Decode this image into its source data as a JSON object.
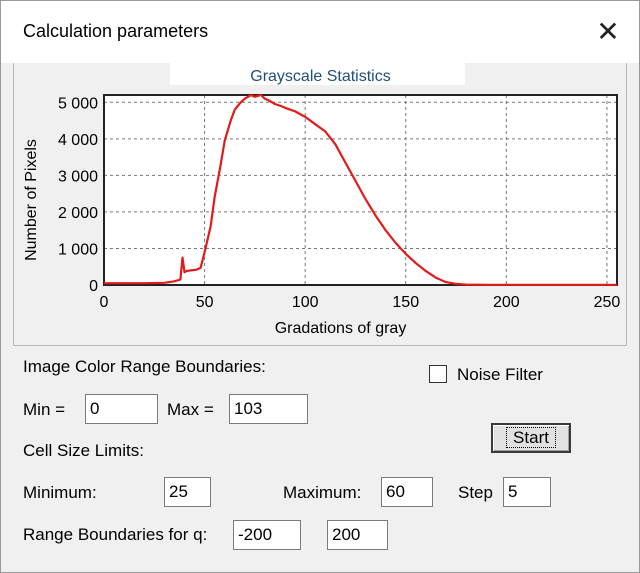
{
  "window": {
    "title": "Calculation parameters"
  },
  "chart_data": {
    "type": "line",
    "title": "Grayscale Statistics",
    "xlabel": "Gradations of gray",
    "ylabel": "Number of Pixels",
    "xlim": [
      0,
      255
    ],
    "ylim": [
      0,
      5200
    ],
    "xticks": [
      "0",
      "50",
      "100",
      "150",
      "200",
      "250"
    ],
    "yticks": [
      "0",
      "1 000",
      "2 000",
      "3 000",
      "4 000",
      "5 000"
    ],
    "grid": true,
    "series": [
      {
        "color": "#e11b1b",
        "x": [
          0,
          20,
          30,
          35,
          38,
          39,
          40,
          41,
          43,
          46,
          48,
          50,
          53,
          55,
          58,
          60,
          63,
          65,
          68,
          70,
          73,
          75,
          78,
          80,
          82,
          85,
          88,
          90,
          95,
          100,
          105,
          110,
          115,
          120,
          125,
          130,
          135,
          140,
          145,
          150,
          155,
          160,
          165,
          170,
          175,
          180,
          190,
          200,
          210,
          220,
          230,
          240,
          250,
          255
        ],
        "y": [
          50,
          50,
          60,
          100,
          150,
          750,
          350,
          380,
          400,
          420,
          470,
          900,
          1600,
          2400,
          3300,
          3950,
          4500,
          4800,
          5000,
          5100,
          5200,
          5150,
          5200,
          5100,
          5050,
          4950,
          4900,
          4850,
          4750,
          4600,
          4400,
          4200,
          3850,
          3350,
          2850,
          2350,
          1900,
          1500,
          1150,
          850,
          600,
          380,
          200,
          80,
          30,
          10,
          5,
          5,
          5,
          5,
          5,
          5,
          5,
          5
        ]
      }
    ]
  },
  "form": {
    "color_range_label": "Image Color Range Boundaries:",
    "noise_filter_label": "Noise Filter",
    "min_label": "Min =",
    "min_value": "0",
    "max_label": "Max =",
    "max_value": "103",
    "start_label": "Start",
    "cell_size_label": "Cell Size Limits:",
    "minimum_label": "Minimum:",
    "minimum_value": "25",
    "maximum_label": "Maximum:",
    "maximum_value": "60",
    "step_label": "Step",
    "step_value": "5",
    "q_range_label": "Range Boundaries for q:",
    "q_min_value": "-200",
    "q_max_value": "200"
  }
}
